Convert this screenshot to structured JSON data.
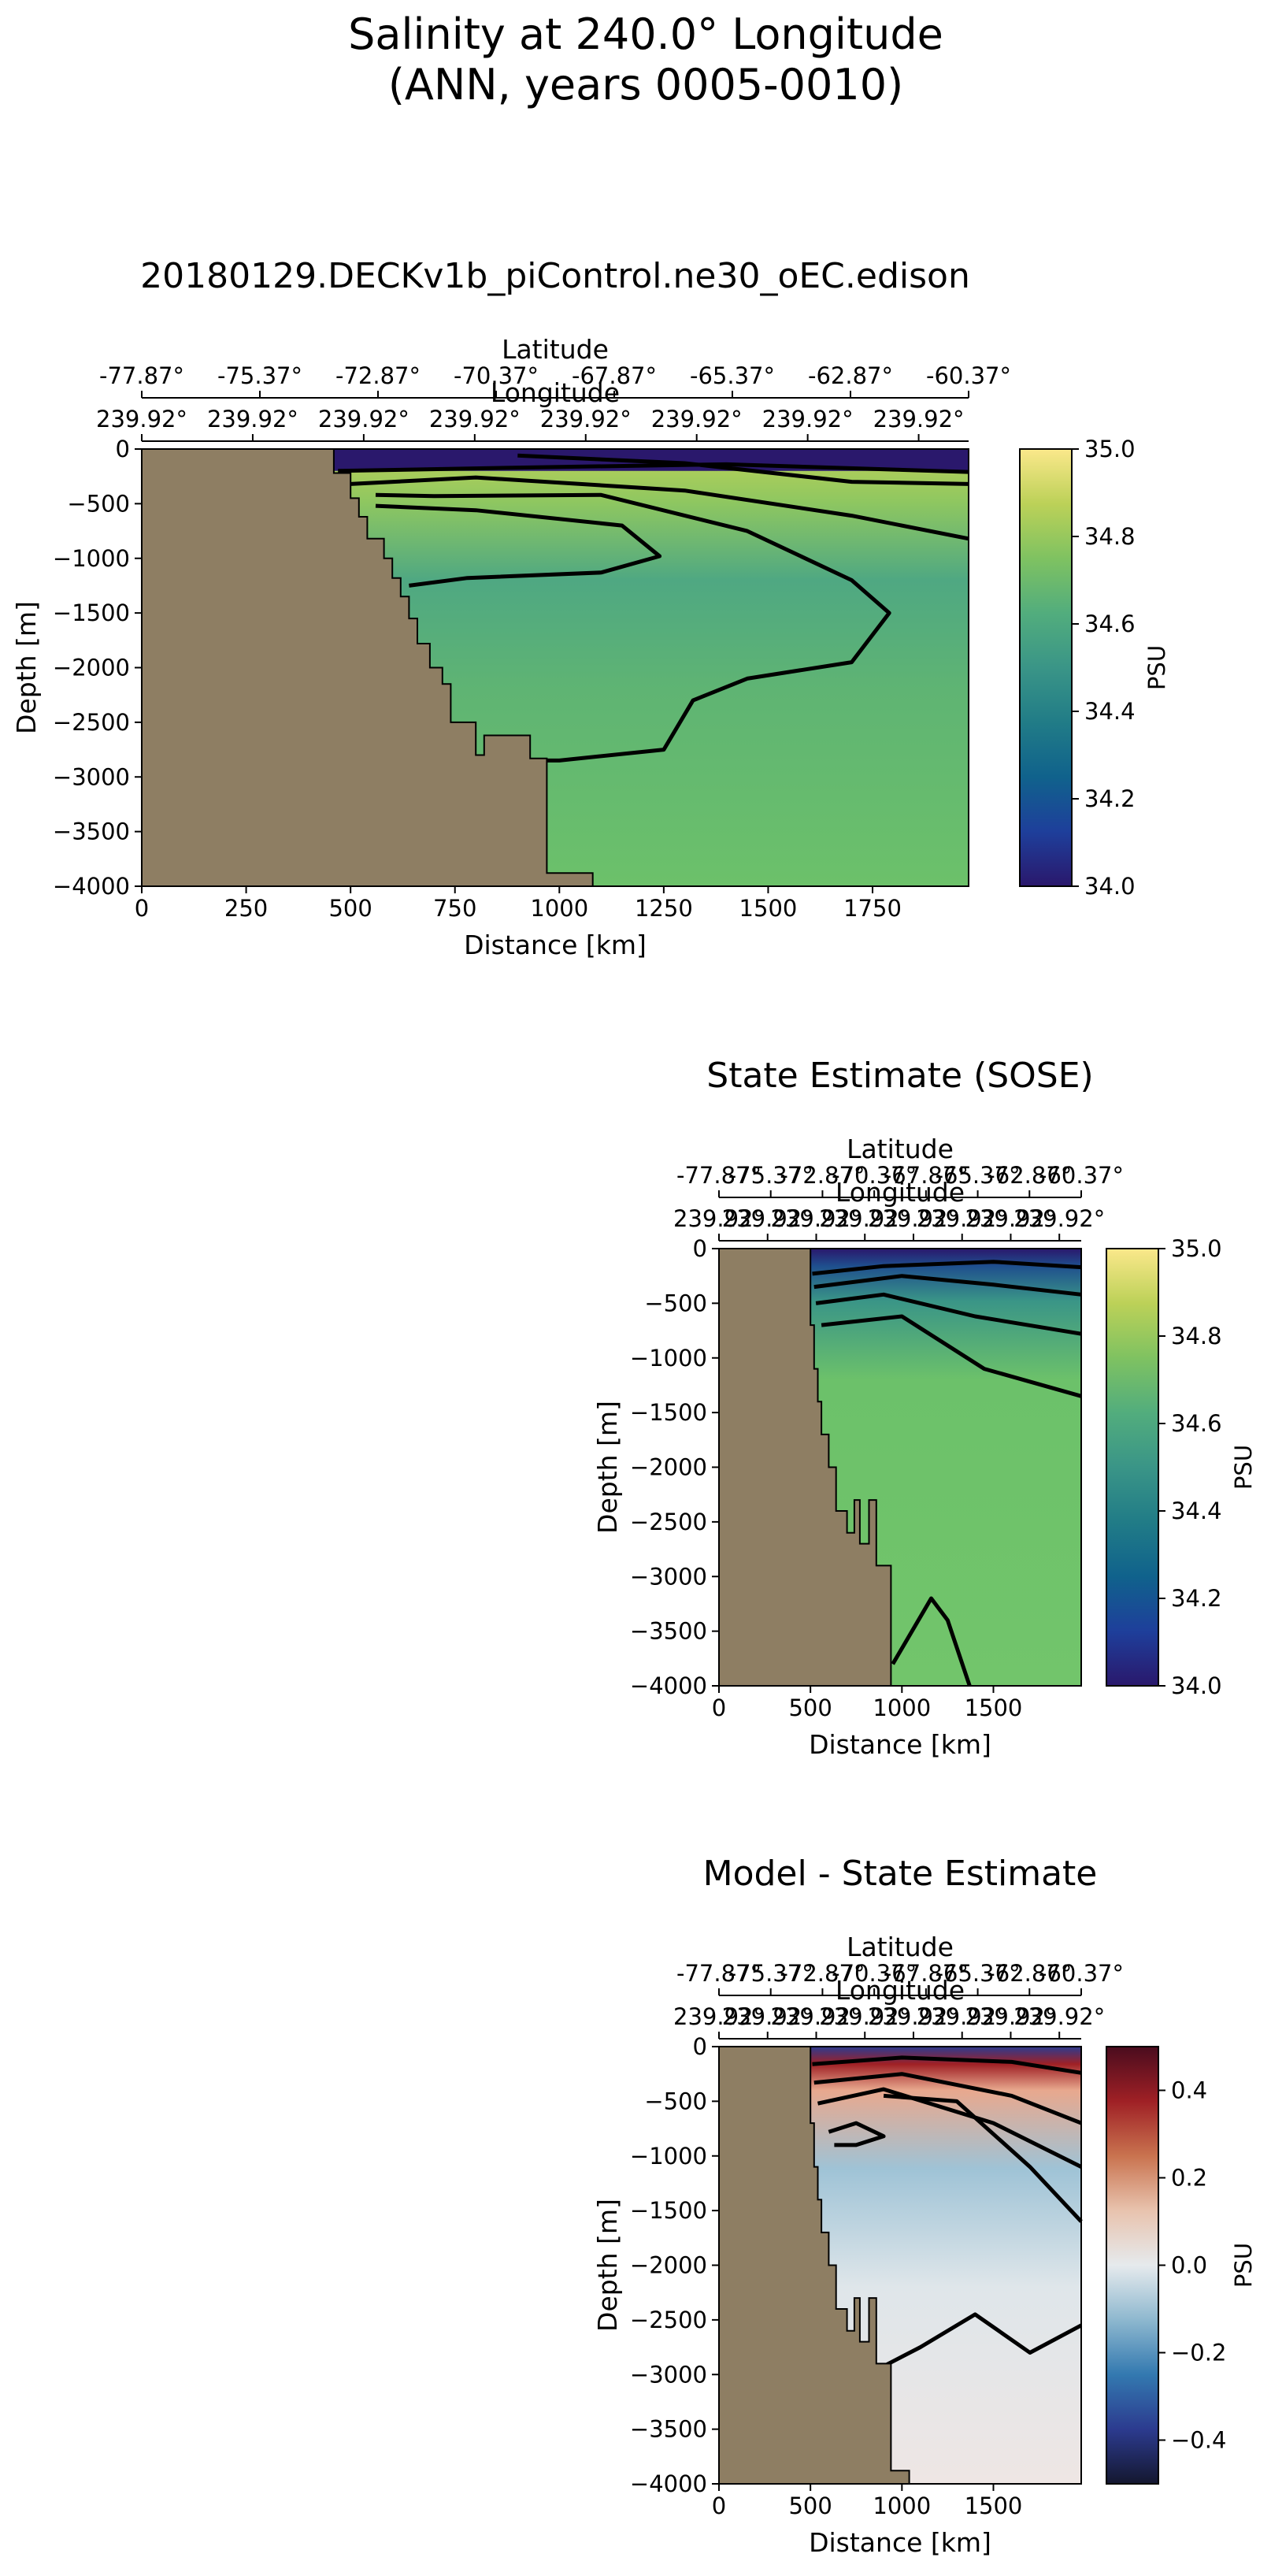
{
  "figure": {
    "title_line1": "Salinity at 240.0° Longitude",
    "title_line2": "(ANN, years 0005-0010)"
  },
  "colors": {
    "land": "#8e7e63",
    "contour": "#000000",
    "haline_stops": [
      "#2a186c",
      "#1e3f9b",
      "#10628c",
      "#217c87",
      "#3a9587",
      "#52ad7d",
      "#7fc261",
      "#bcd158",
      "#fbe88b"
    ],
    "diff_stops": [
      "#14172f",
      "#2c3b8f",
      "#3379b0",
      "#8eb8cf",
      "#e6eaed",
      "#e8c3ae",
      "#c9734f",
      "#9f2025",
      "#4a0c1e"
    ]
  },
  "chart_data": [
    {
      "type": "heatmap",
      "id": "model",
      "title": "20180129.DECKv1b_piControl.ne30_oEC.edison",
      "xlabel": "Distance [km]",
      "ylabel": "Depth [m]",
      "xlim": [
        0,
        1980
      ],
      "ylim": [
        -4000,
        0
      ],
      "xticks": [
        0,
        250,
        500,
        750,
        1000,
        1250,
        1500,
        1750
      ],
      "yticks": [
        0,
        -500,
        -1000,
        -1500,
        -2000,
        -2500,
        -3000,
        -3500,
        -4000
      ],
      "lat_axis": {
        "label": "Latitude",
        "ticks": [
          "-77.87°",
          "-75.37°",
          "-72.87°",
          "-70.37°",
          "-67.87°",
          "-65.37°",
          "-62.87°",
          "-60.37°"
        ]
      },
      "lon_axis": {
        "label": "Longitude",
        "ticks": [
          "239.92°",
          "239.92°",
          "239.92°",
          "239.92°",
          "239.92°",
          "239.92°",
          "239.92°",
          "239.92°"
        ]
      },
      "colorbar": {
        "label": "PSU",
        "range": [
          34.0,
          35.0
        ],
        "ticks": [
          "34.0",
          "34.2",
          "34.4",
          "34.6",
          "34.8",
          "35.0"
        ]
      },
      "field_summary": {
        "surface_fresh_layer": 34.0,
        "upper_salty_band": 34.8,
        "intermediate_core": 34.55,
        "deep": 34.68
      },
      "bathymetry": [
        [
          0,
          0
        ],
        [
          460,
          0
        ],
        [
          460,
          -220
        ],
        [
          500,
          -220
        ],
        [
          500,
          -450
        ],
        [
          520,
          -450
        ],
        [
          520,
          -620
        ],
        [
          540,
          -620
        ],
        [
          540,
          -820
        ],
        [
          580,
          -820
        ],
        [
          580,
          -1000
        ],
        [
          600,
          -1000
        ],
        [
          600,
          -1180
        ],
        [
          620,
          -1180
        ],
        [
          620,
          -1350
        ],
        [
          640,
          -1350
        ],
        [
          640,
          -1550
        ],
        [
          660,
          -1550
        ],
        [
          660,
          -1780
        ],
        [
          690,
          -1780
        ],
        [
          690,
          -2000
        ],
        [
          720,
          -2000
        ],
        [
          720,
          -2150
        ],
        [
          740,
          -2150
        ],
        [
          740,
          -2500
        ],
        [
          800,
          -2500
        ],
        [
          800,
          -2800
        ],
        [
          820,
          -2800
        ],
        [
          820,
          -2620
        ],
        [
          930,
          -2620
        ],
        [
          930,
          -2830
        ],
        [
          970,
          -2830
        ],
        [
          970,
          -3880
        ],
        [
          1080,
          -3880
        ],
        [
          1080,
          -4000
        ],
        [
          0,
          -4000
        ]
      ]
    },
    {
      "type": "heatmap",
      "id": "obs",
      "title": "State Estimate (SOSE)",
      "xlabel": "Distance [km]",
      "ylabel": "Depth [m]",
      "xlim": [
        0,
        1980
      ],
      "ylim": [
        -4000,
        0
      ],
      "xticks": [
        0,
        500,
        1000,
        1500
      ],
      "yticks": [
        0,
        -500,
        -1000,
        -1500,
        -2000,
        -2500,
        -3000,
        -3500,
        -4000
      ],
      "lat_axis": {
        "label": "Latitude",
        "ticks": [
          "-77.87°",
          "-75.37°",
          "-72.87°",
          "-70.37°",
          "-67.87°",
          "-65.37°",
          "-62.87°",
          "-60.37°"
        ]
      },
      "lon_axis": {
        "label": "Longitude",
        "ticks": [
          "239.92°",
          "239.92°",
          "239.92°",
          "239.92°",
          "239.92°",
          "239.92°",
          "239.92°",
          "239.92°"
        ]
      },
      "colorbar": {
        "label": "PSU",
        "range": [
          34.0,
          35.0
        ],
        "ticks": [
          "34.0",
          "34.2",
          "34.4",
          "34.6",
          "34.8",
          "35.0"
        ]
      },
      "field_summary": {
        "surface": 34.05,
        "upper_gradient_base": 34.6,
        "deep": 34.7
      },
      "bathymetry": [
        [
          0,
          0
        ],
        [
          500,
          0
        ],
        [
          500,
          -700
        ],
        [
          520,
          -700
        ],
        [
          520,
          -1100
        ],
        [
          540,
          -1100
        ],
        [
          540,
          -1400
        ],
        [
          560,
          -1400
        ],
        [
          560,
          -1700
        ],
        [
          600,
          -1700
        ],
        [
          600,
          -2000
        ],
        [
          640,
          -2000
        ],
        [
          640,
          -2400
        ],
        [
          700,
          -2400
        ],
        [
          700,
          -2600
        ],
        [
          740,
          -2600
        ],
        [
          740,
          -2300
        ],
        [
          770,
          -2300
        ],
        [
          770,
          -2700
        ],
        [
          820,
          -2700
        ],
        [
          820,
          -2300
        ],
        [
          860,
          -2300
        ],
        [
          860,
          -2900
        ],
        [
          940,
          -2900
        ],
        [
          940,
          -4000
        ],
        [
          0,
          -4000
        ]
      ]
    },
    {
      "type": "heatmap",
      "id": "diff",
      "title": "Model - State Estimate",
      "xlabel": "Distance [km]",
      "ylabel": "Depth [m]",
      "xlim": [
        0,
        1980
      ],
      "ylim": [
        -4000,
        0
      ],
      "xticks": [
        0,
        500,
        1000,
        1500
      ],
      "yticks": [
        0,
        -500,
        -1000,
        -1500,
        -2000,
        -2500,
        -3000,
        -3500,
        -4000
      ],
      "lat_axis": {
        "label": "Latitude",
        "ticks": [
          "-77.87°",
          "-75.37°",
          "-72.87°",
          "-70.37°",
          "-67.87°",
          "-65.37°",
          "-62.87°",
          "-60.37°"
        ]
      },
      "lon_axis": {
        "label": "Longitude",
        "ticks": [
          "239.92°",
          "239.92°",
          "239.92°",
          "239.92°",
          "239.92°",
          "239.92°",
          "239.92°",
          "239.92°"
        ]
      },
      "colorbar": {
        "label": "PSU",
        "range": [
          -0.5,
          0.5
        ],
        "ticks": [
          "−0.4",
          "−0.2",
          "0.0",
          "0.2",
          "0.4"
        ]
      },
      "field_summary": {
        "surface": -0.4,
        "upper_positive_band": 0.35,
        "intermediate_negative": -0.15,
        "deep": 0.0
      },
      "bathymetry": [
        [
          0,
          0
        ],
        [
          500,
          0
        ],
        [
          500,
          -700
        ],
        [
          520,
          -700
        ],
        [
          520,
          -1100
        ],
        [
          540,
          -1100
        ],
        [
          540,
          -1400
        ],
        [
          560,
          -1400
        ],
        [
          560,
          -1700
        ],
        [
          600,
          -1700
        ],
        [
          600,
          -2000
        ],
        [
          640,
          -2000
        ],
        [
          640,
          -2400
        ],
        [
          700,
          -2400
        ],
        [
          700,
          -2600
        ],
        [
          740,
          -2600
        ],
        [
          740,
          -2300
        ],
        [
          770,
          -2300
        ],
        [
          770,
          -2700
        ],
        [
          820,
          -2700
        ],
        [
          820,
          -2300
        ],
        [
          860,
          -2300
        ],
        [
          860,
          -2900
        ],
        [
          940,
          -2900
        ],
        [
          940,
          -3880
        ],
        [
          1040,
          -3880
        ],
        [
          1040,
          -4000
        ],
        [
          0,
          -4000
        ]
      ]
    }
  ]
}
